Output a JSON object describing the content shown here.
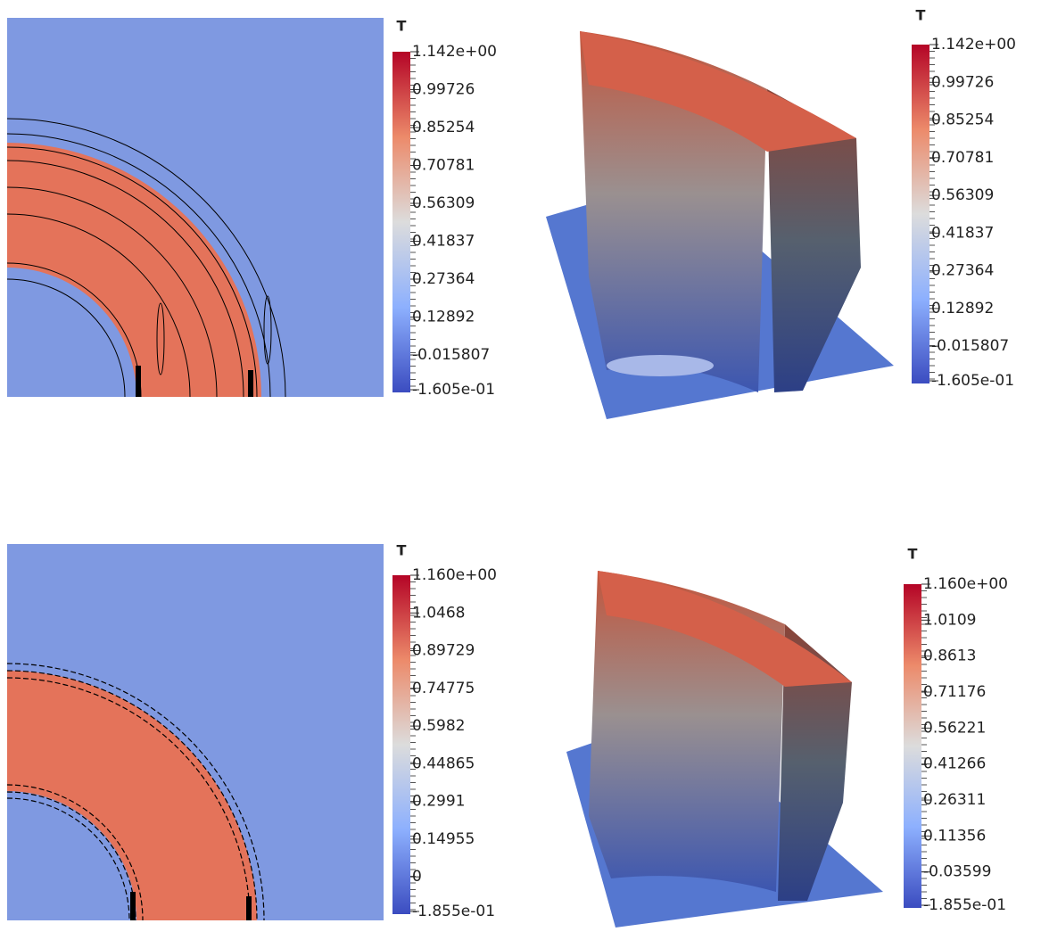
{
  "panels": [
    {
      "colorbar": {
        "title": "T",
        "labels": [
          "1.142e+00",
          "0.99726",
          "0.85254",
          "0.70781",
          "0.56309",
          "0.41837",
          "0.27364",
          "0.12892",
          "-0.015807",
          "-1.605e-01"
        ]
      }
    },
    {
      "colorbar": {
        "title": "T",
        "labels": [
          "1.142e+00",
          "0.99726",
          "0.85254",
          "0.70781",
          "0.56309",
          "0.41837",
          "0.27364",
          "0.12892",
          "-0.015807",
          "-1.605e-01"
        ]
      }
    },
    {
      "colorbar": {
        "title": "T",
        "labels": [
          "1.160e+00",
          "1.0468",
          "0.89729",
          "0.74775",
          "0.5982",
          "0.44865",
          "0.2991",
          "0.14955",
          "0",
          "-1.855e-01"
        ]
      }
    },
    {
      "colorbar": {
        "title": "T",
        "labels": [
          "1.160e+00",
          "1.0109",
          "0.8613",
          "0.71176",
          "0.56221",
          "0.41266",
          "0.26311",
          "0.11356",
          "-0.03599",
          "-1.855e-01"
        ]
      }
    }
  ]
}
